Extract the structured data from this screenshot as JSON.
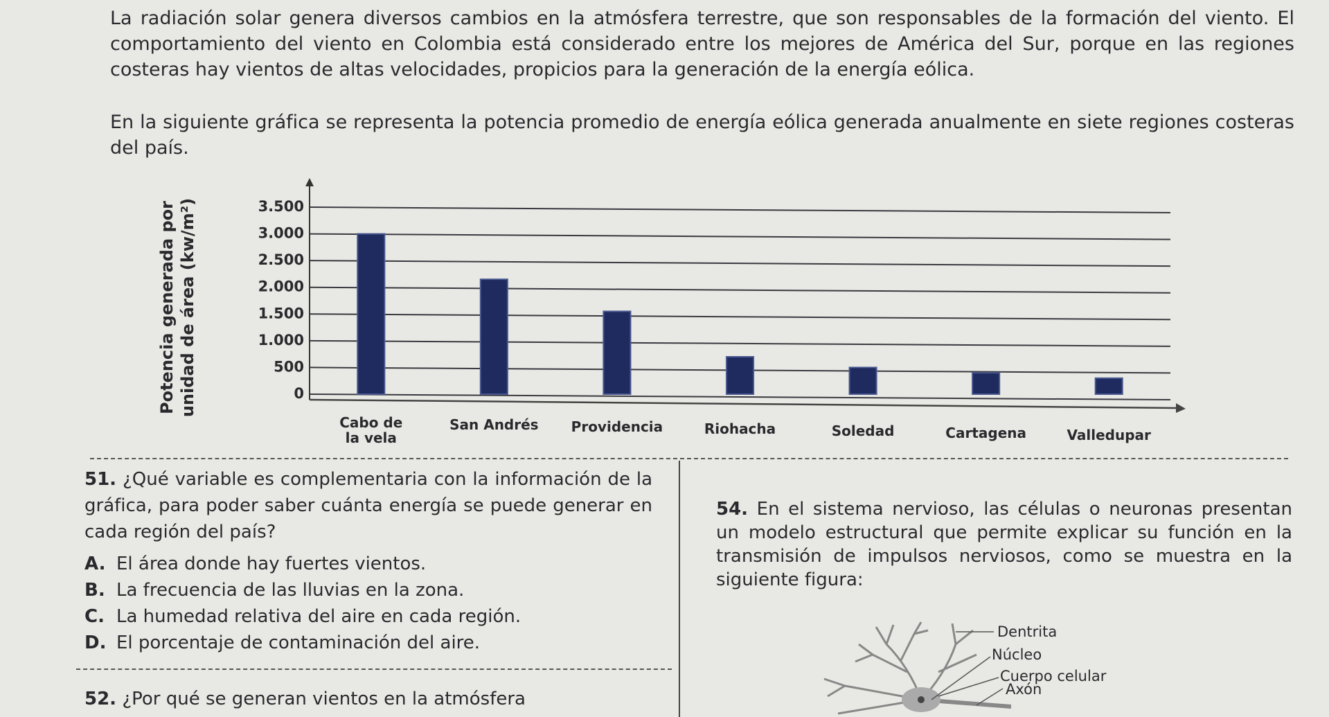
{
  "intro": [
    "La radiación solar genera diversos cambios en la atmósfera terrestre, que son responsables de la formación del viento. El comportamiento del viento en Colombia está considerado entre los mejores de América del Sur, porque en las regiones costeras hay vientos de altas velocidades, propicios para la generación de la energía eólica.",
    "En la siguiente gráfica se representa la potencia promedio de energía eólica generada anualmente en siete regiones costeras del país."
  ],
  "chart_data": {
    "type": "bar",
    "ylabel": [
      "Potencia generada por",
      "unidad de área (kw/m²)"
    ],
    "categories": [
      "Cabo de la vela",
      "San Andrés",
      "Providencia",
      "Riohacha",
      "Soledad",
      "Cartagena",
      "Valledupar"
    ],
    "values": [
      3000,
      2150,
      1550,
      700,
      500,
      400,
      300
    ],
    "color": "#1f2a5e",
    "ylim": [
      0,
      3500
    ],
    "yticks": [
      0,
      500,
      {
        "value": 1000,
        "label": "1.000"
      },
      {
        "value": 1500,
        "label": "1.500"
      },
      {
        "value": 2000,
        "label": "2.000"
      },
      {
        "value": 2500,
        "label": "2.500"
      },
      {
        "value": 3000,
        "label": "3.000"
      },
      {
        "value": 3500,
        "label": "3.500"
      }
    ],
    "grid": true
  },
  "questions": [
    {
      "number": "51.",
      "text": "¿Qué variable es complementaria con la información de la gráfica, para poder saber cuánta energía se puede generar en cada región del país?",
      "options": [
        {
          "letter": "A.",
          "text": "El área donde hay fuertes vientos."
        },
        {
          "letter": "B.",
          "text": "La frecuencia de las lluvias en la zona."
        },
        {
          "letter": "C.",
          "text": "La humedad relativa del aire en cada región."
        },
        {
          "letter": "D.",
          "text": "El porcentaje de contaminación del aire."
        }
      ]
    },
    {
      "number": "52.",
      "text": "¿Por qué se generan vientos en la atmósfera"
    },
    {
      "number": "54.",
      "text": "En el sistema nervioso, las células o neuronas presentan un modelo estructural que permite explicar su función en la transmisión de impulsos nerviosos, como se muestra en la siguiente figura:"
    }
  ],
  "figure": {
    "labels": [
      "Dentrita",
      "Núcleo",
      "Cuerpo celular",
      "Axón"
    ]
  }
}
